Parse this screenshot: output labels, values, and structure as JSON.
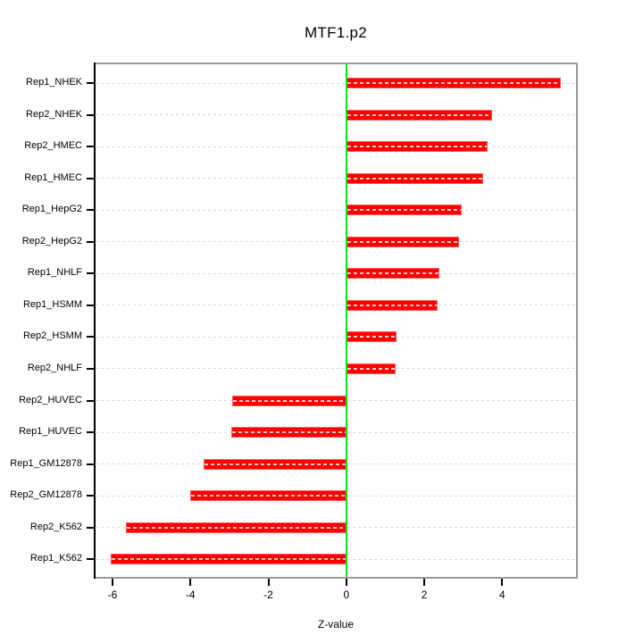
{
  "chart_data": {
    "type": "bar",
    "orientation": "horizontal",
    "title": "MTF1.p2",
    "xlabel": "Z-value",
    "ylabel": "",
    "categories": [
      "Rep1_NHEK",
      "Rep2_NHEK",
      "Rep2_HMEC",
      "Rep1_HMEC",
      "Rep1_HepG2",
      "Rep2_HepG2",
      "Rep1_NHLF",
      "Rep1_HSMM",
      "Rep2_HSMM",
      "Rep2_NHLF",
      "Rep2_HUVEC",
      "Rep1_HUVEC",
      "Rep1_GM12878",
      "Rep2_GM12878",
      "Rep2_K562",
      "Rep1_K562"
    ],
    "values": [
      5.5,
      3.75,
      3.62,
      3.51,
      2.96,
      2.89,
      2.39,
      2.34,
      1.29,
      1.27,
      -2.93,
      -2.95,
      -3.66,
      -4.01,
      -5.66,
      -6.05
    ],
    "x_ticks": [
      -6,
      -4,
      -2,
      0,
      2,
      4
    ],
    "xlim": [
      -6.48,
      5.94
    ],
    "grid": true,
    "legend": false,
    "zero_line_value": 0,
    "colors": {
      "bar_fill": "#ff0000",
      "bar_border": "#ff5c5c",
      "bar_center_dash": "rgba(255,255,255,0.8)",
      "zero_line": "#00ee00",
      "gridline": "#d9d9d9",
      "box_border": "#999999",
      "axis": "#000000",
      "text": "#000000",
      "background": "#ffffff"
    }
  }
}
